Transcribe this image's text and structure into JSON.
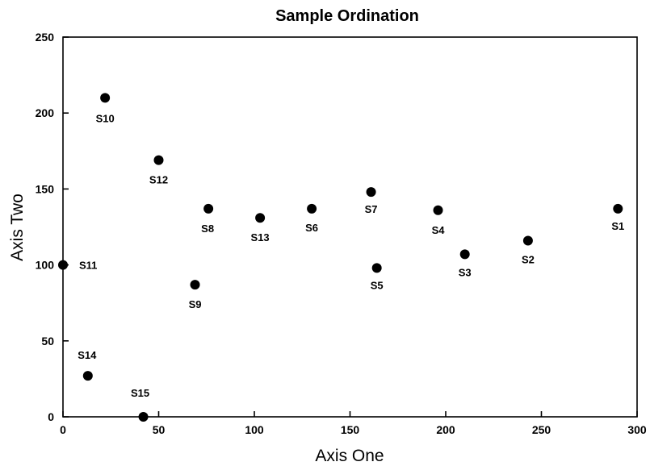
{
  "chart_data": {
    "type": "scatter",
    "title": "Sample Ordination",
    "xlabel": "Axis One",
    "ylabel": "Axis Two",
    "xlim": [
      0,
      300
    ],
    "ylim": [
      0,
      250
    ],
    "xticks": [
      "0",
      "50",
      "100",
      "150",
      "200",
      "250",
      "300"
    ],
    "yticks": [
      "0",
      "50",
      "100",
      "150",
      "200",
      "250"
    ],
    "grid": false,
    "legend": "none",
    "marker_color": "#000000",
    "points": [
      {
        "label": "S1",
        "x": 290,
        "y": 137
      },
      {
        "label": "S2",
        "x": 243,
        "y": 116
      },
      {
        "label": "S3",
        "x": 210,
        "y": 107
      },
      {
        "label": "S4",
        "x": 196,
        "y": 136
      },
      {
        "label": "S5",
        "x": 164,
        "y": 98
      },
      {
        "label": "S6",
        "x": 130,
        "y": 137
      },
      {
        "label": "S7",
        "x": 161,
        "y": 148
      },
      {
        "label": "S8",
        "x": 76,
        "y": 137
      },
      {
        "label": "S9",
        "x": 69,
        "y": 87
      },
      {
        "label": "S10",
        "x": 22,
        "y": 210
      },
      {
        "label": "S11",
        "x": 0,
        "y": 100
      },
      {
        "label": "S12",
        "x": 50,
        "y": 169
      },
      {
        "label": "S13",
        "x": 103,
        "y": 131
      },
      {
        "label": "S14",
        "x": 13,
        "y": 27
      },
      {
        "label": "S15",
        "x": 42,
        "y": 0
      }
    ]
  }
}
